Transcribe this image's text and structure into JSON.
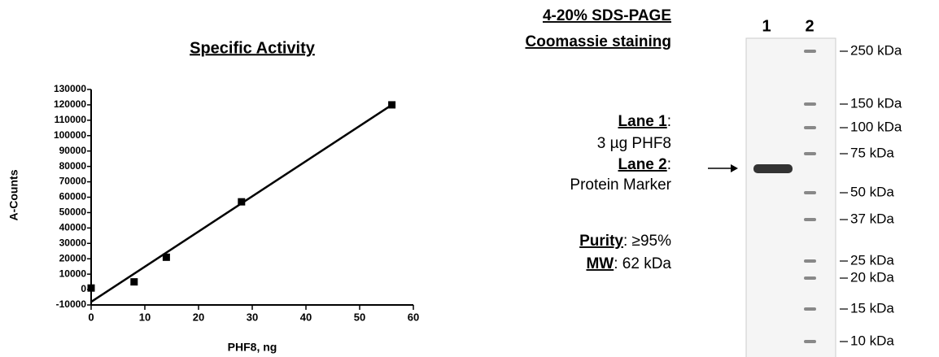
{
  "chart_data": {
    "type": "scatter",
    "title": "Specific Activity",
    "x_label": "PHF8, ng",
    "y_label": "A-Counts",
    "x": [
      0,
      8,
      14,
      28,
      56
    ],
    "values": [
      1000,
      5000,
      21000,
      57000,
      120000
    ],
    "color": "#000000",
    "trendline": {
      "x": [
        0,
        56
      ],
      "y": [
        -8000,
        120000
      ]
    },
    "xlim": [
      0,
      60
    ],
    "xticks": [
      0,
      10,
      20,
      30,
      40,
      50,
      60
    ],
    "ylim": [
      -10000,
      130000
    ],
    "yticks": [
      -10000,
      0,
      10000,
      20000,
      30000,
      40000,
      50000,
      60000,
      70000,
      80000,
      90000,
      100000,
      110000,
      120000,
      130000
    ],
    "grid": false
  },
  "gel": {
    "title": [
      "4-20% SDS-PAGE",
      "Coomassie staining"
    ],
    "notes": [
      {
        "bold": "Lane 1",
        "plain": ":"
      },
      {
        "plain": "3 µg PHF8"
      },
      {
        "bold": "Lane 2",
        "plain": ":"
      },
      {
        "plain": "Protein Marker"
      },
      {
        "bold": "Purity",
        "plain": ": ≥95%"
      },
      {
        "bold": "MW",
        "plain": ": 62 kDa"
      }
    ],
    "lanes": [
      "1",
      "2"
    ],
    "markers": [
      "250 kDa",
      "150 kDa",
      "100 kDa",
      "75 kDa",
      "50 kDa",
      "37 kDa",
      "25 kDa",
      "20 kDa",
      "15 kDa",
      "10 kDa"
    ]
  }
}
